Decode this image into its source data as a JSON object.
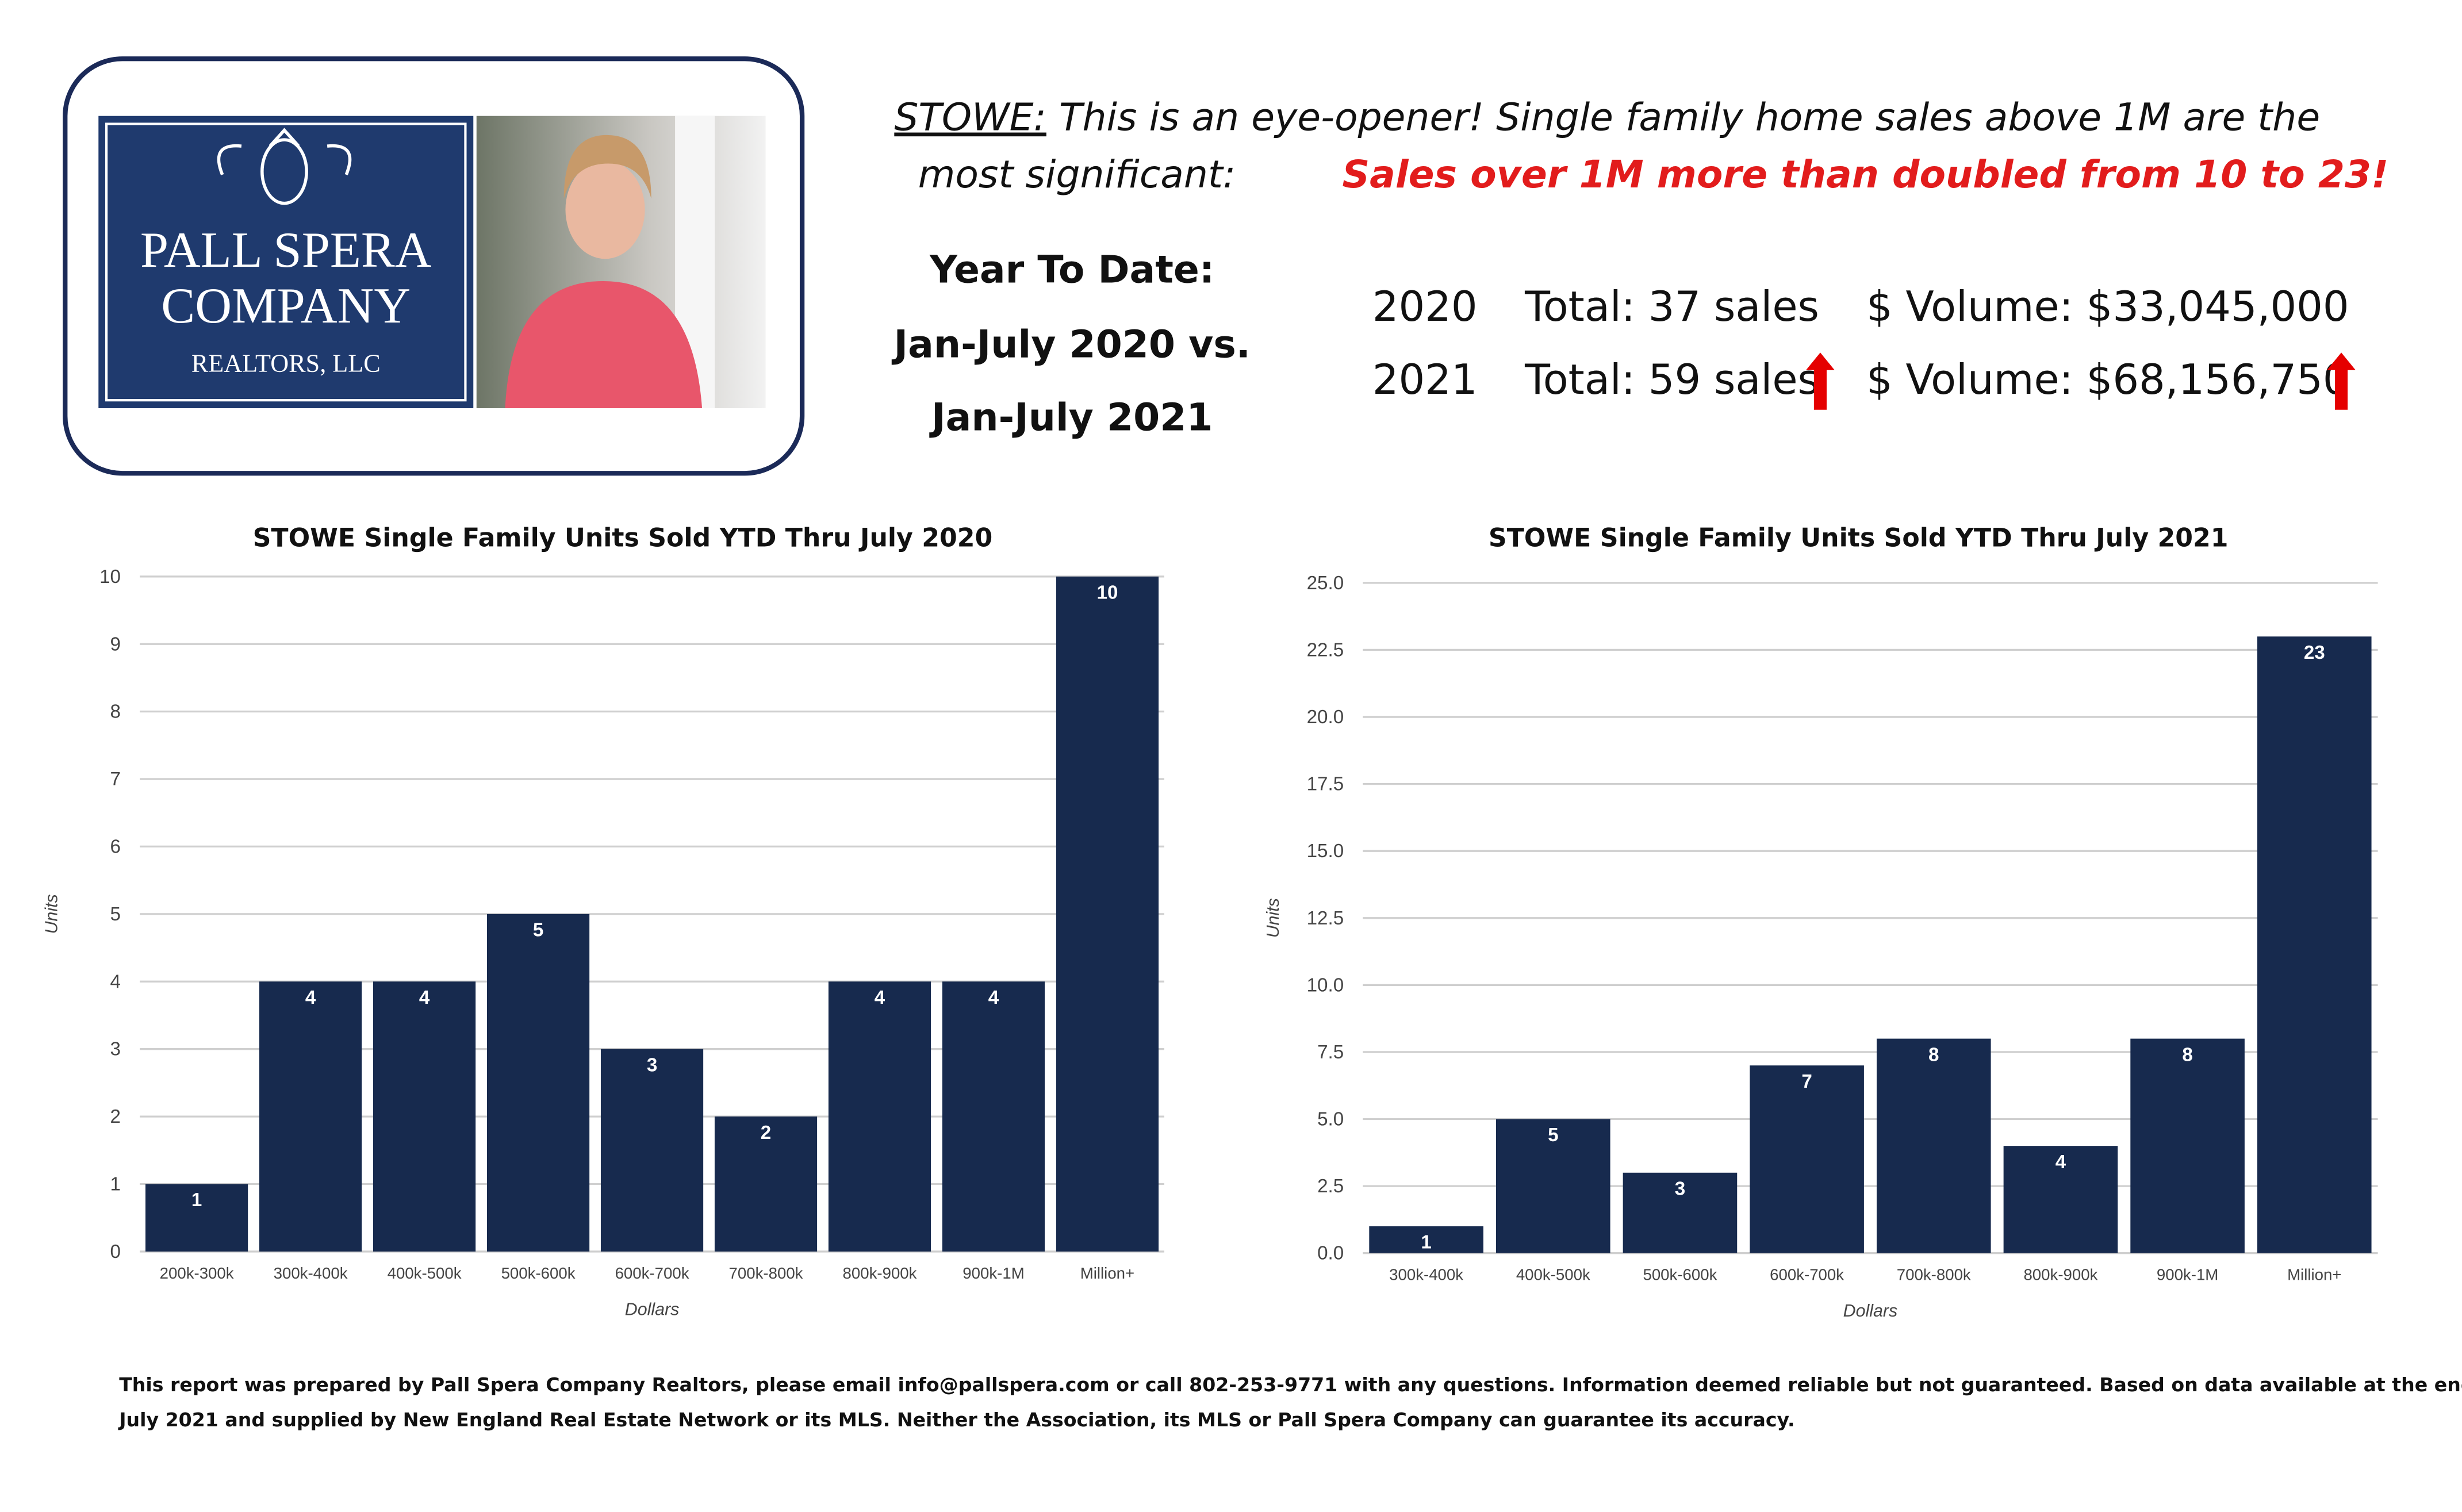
{
  "logo": {
    "line1": "PALL SPERA",
    "line2": "COMPANY",
    "line3": "REALTORS, LLC"
  },
  "header": {
    "town": "STOWE:",
    "line1": "This is an eye-opener! Single family home sales above 1M are the",
    "line2": "most significant:",
    "highlight": "Sales over 1M more than doubled from 10 to 23!"
  },
  "period": {
    "line1": "Year To Date:",
    "line2": "Jan-July 2020 vs.",
    "line3": "Jan-July 2021"
  },
  "summary": {
    "rows": [
      [
        "2020",
        "Total: 37 sales",
        "$ Volume: $33,045,000"
      ],
      [
        "2021",
        "Total: 59 sales",
        "$ Volume: $68,156,750"
      ]
    ]
  },
  "footer": {
    "line1": "This report was prepared by Pall Spera Company Realtors, please email info@pallspera.com or call 802-253-9771 with any questions. Information deemed reliable but not guaranteed. Based on data available at the end of",
    "line2": "July 2021 and supplied by New England Real Estate Network or its MLS. Neither the Association, its MLS or Pall Spera Company can guarantee its accuracy."
  },
  "chart_data": [
    {
      "type": "bar",
      "title": "STOWE Single Family Units Sold YTD Thru July 2020",
      "x_label": "Dollars",
      "y_label": "Units",
      "categories": [
        "200k-300k",
        "300k-400k",
        "400k-500k",
        "500k-600k",
        "600k-700k",
        "700k-800k",
        "800k-900k",
        "900k-1M",
        "Million+"
      ],
      "values": [
        1,
        4,
        4,
        5,
        3,
        2,
        4,
        4,
        10
      ],
      "color": "#172a4e",
      "ylim": [
        0,
        10
      ],
      "yticks": [
        0,
        1,
        2,
        3,
        4,
        5,
        6,
        7,
        8,
        9,
        10
      ],
      "grid": true
    },
    {
      "type": "bar",
      "title": "STOWE Single Family Units Sold YTD Thru July 2021",
      "x_label": "Dollars",
      "y_label": "Units",
      "categories": [
        "300k-400k",
        "400k-500k",
        "500k-600k",
        "600k-700k",
        "700k-800k",
        "800k-900k",
        "900k-1M",
        "Million+"
      ],
      "values": [
        1,
        5,
        3,
        7,
        8,
        4,
        8,
        23
      ],
      "color": "#172a4e",
      "ylim": [
        0,
        25
      ],
      "yticks": [
        {
          "value": 0,
          "label": "0.0"
        },
        {
          "value": 2.5,
          "label": "2.5"
        },
        {
          "value": 5,
          "label": "5.0"
        },
        {
          "value": 7.5,
          "label": "7.5"
        },
        {
          "value": 10,
          "label": "10.0"
        },
        {
          "value": 12.5,
          "label": "12.5"
        },
        {
          "value": 15,
          "label": "15.0"
        },
        {
          "value": 17.5,
          "label": "17.5"
        },
        {
          "value": 20,
          "label": "20.0"
        },
        {
          "value": 22.5,
          "label": "22.5"
        },
        {
          "value": 25,
          "label": "25.0"
        }
      ],
      "grid": true
    }
  ]
}
